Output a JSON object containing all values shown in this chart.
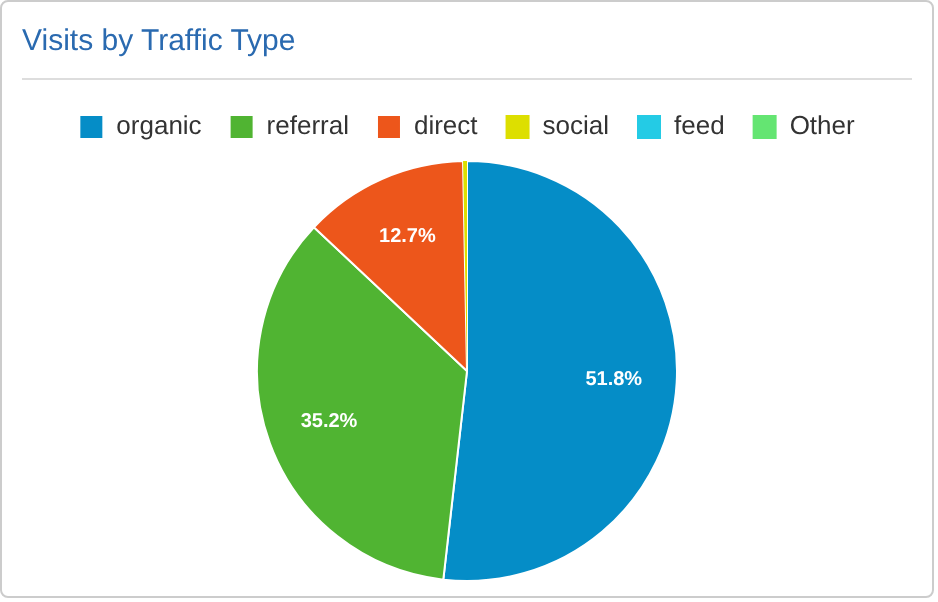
{
  "chart_data": {
    "type": "pie",
    "title": "Visits by Traffic Type",
    "categories": [
      "organic",
      "referral",
      "direct",
      "social",
      "feed",
      "Other"
    ],
    "values": [
      51.8,
      35.2,
      12.7,
      0.3,
      0,
      0
    ],
    "colors": [
      "#058dc7",
      "#50b432",
      "#ed561b",
      "#dddf00",
      "#24cbe5",
      "#64e572"
    ],
    "value_labels": [
      "51.8%",
      "35.2%",
      "12.7%",
      null,
      null,
      null
    ],
    "legend": "top"
  }
}
